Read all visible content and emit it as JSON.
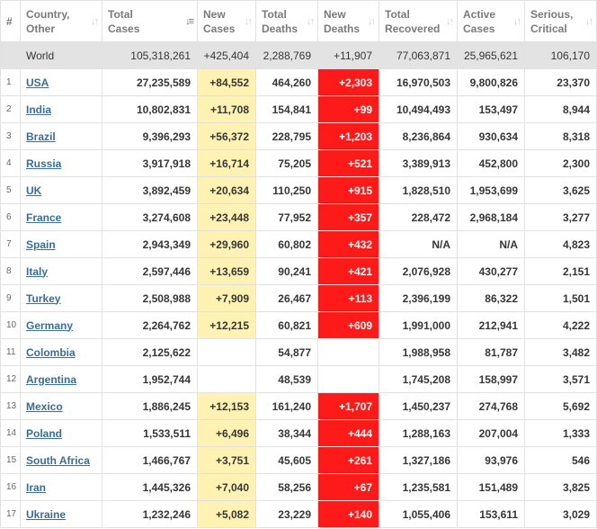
{
  "headers": [
    {
      "id": "rank",
      "lines": [
        "#"
      ]
    },
    {
      "id": "country",
      "lines": [
        "Country,",
        "Other"
      ]
    },
    {
      "id": "total_cases",
      "lines": [
        "Total",
        "Cases"
      ],
      "sorted": true
    },
    {
      "id": "new_cases",
      "lines": [
        "New",
        "Cases"
      ]
    },
    {
      "id": "total_deaths",
      "lines": [
        "Total",
        "Deaths"
      ]
    },
    {
      "id": "new_deaths",
      "lines": [
        "New",
        "Deaths"
      ]
    },
    {
      "id": "total_recovered",
      "lines": [
        "Total",
        "Recovered"
      ]
    },
    {
      "id": "active_cases",
      "lines": [
        "Active",
        "Cases"
      ]
    },
    {
      "id": "serious_critical",
      "lines": [
        "Serious,",
        "Critical"
      ]
    }
  ],
  "world": {
    "country": "World",
    "total_cases": "105,318,261",
    "new_cases": "+425,404",
    "total_deaths": "2,288,769",
    "new_deaths": "+11,907",
    "total_recovered": "77,063,871",
    "active_cases": "25,965,621",
    "serious_critical": "106,170"
  },
  "rows": [
    {
      "rank": "1",
      "country": "USA",
      "total_cases": "27,235,589",
      "new_cases": "+84,552",
      "total_deaths": "464,260",
      "new_deaths": "+2,303",
      "total_recovered": "16,970,503",
      "active_cases": "9,800,826",
      "serious_critical": "23,370"
    },
    {
      "rank": "2",
      "country": "India",
      "total_cases": "10,802,831",
      "new_cases": "+11,708",
      "total_deaths": "154,841",
      "new_deaths": "+99",
      "total_recovered": "10,494,493",
      "active_cases": "153,497",
      "serious_critical": "8,944"
    },
    {
      "rank": "3",
      "country": "Brazil",
      "total_cases": "9,396,293",
      "new_cases": "+56,372",
      "total_deaths": "228,795",
      "new_deaths": "+1,203",
      "total_recovered": "8,236,864",
      "active_cases": "930,634",
      "serious_critical": "8,318"
    },
    {
      "rank": "4",
      "country": "Russia",
      "total_cases": "3,917,918",
      "new_cases": "+16,714",
      "total_deaths": "75,205",
      "new_deaths": "+521",
      "total_recovered": "3,389,913",
      "active_cases": "452,800",
      "serious_critical": "2,300"
    },
    {
      "rank": "5",
      "country": "UK",
      "total_cases": "3,892,459",
      "new_cases": "+20,634",
      "total_deaths": "110,250",
      "new_deaths": "+915",
      "total_recovered": "1,828,510",
      "active_cases": "1,953,699",
      "serious_critical": "3,625"
    },
    {
      "rank": "6",
      "country": "France",
      "total_cases": "3,274,608",
      "new_cases": "+23,448",
      "total_deaths": "77,952",
      "new_deaths": "+357",
      "total_recovered": "228,472",
      "active_cases": "2,968,184",
      "serious_critical": "3,277"
    },
    {
      "rank": "7",
      "country": "Spain",
      "total_cases": "2,943,349",
      "new_cases": "+29,960",
      "total_deaths": "60,802",
      "new_deaths": "+432",
      "total_recovered": "N/A",
      "active_cases": "N/A",
      "serious_critical": "4,823"
    },
    {
      "rank": "8",
      "country": "Italy",
      "total_cases": "2,597,446",
      "new_cases": "+13,659",
      "total_deaths": "90,241",
      "new_deaths": "+421",
      "total_recovered": "2,076,928",
      "active_cases": "430,277",
      "serious_critical": "2,151"
    },
    {
      "rank": "9",
      "country": "Turkey",
      "total_cases": "2,508,988",
      "new_cases": "+7,909",
      "total_deaths": "26,467",
      "new_deaths": "+113",
      "total_recovered": "2,396,199",
      "active_cases": "86,322",
      "serious_critical": "1,501"
    },
    {
      "rank": "10",
      "country": "Germany",
      "total_cases": "2,264,762",
      "new_cases": "+12,215",
      "total_deaths": "60,821",
      "new_deaths": "+609",
      "total_recovered": "1,991,000",
      "active_cases": "212,941",
      "serious_critical": "4,222"
    },
    {
      "rank": "11",
      "country": "Colombia",
      "total_cases": "2,125,622",
      "new_cases": "",
      "total_deaths": "54,877",
      "new_deaths": "",
      "total_recovered": "1,988,958",
      "active_cases": "81,787",
      "serious_critical": "3,482"
    },
    {
      "rank": "12",
      "country": "Argentina",
      "total_cases": "1,952,744",
      "new_cases": "",
      "total_deaths": "48,539",
      "new_deaths": "",
      "total_recovered": "1,745,208",
      "active_cases": "158,997",
      "serious_critical": "3,571"
    },
    {
      "rank": "13",
      "country": "Mexico",
      "total_cases": "1,886,245",
      "new_cases": "+12,153",
      "total_deaths": "161,240",
      "new_deaths": "+1,707",
      "total_recovered": "1,450,237",
      "active_cases": "274,768",
      "serious_critical": "5,692"
    },
    {
      "rank": "14",
      "country": "Poland",
      "total_cases": "1,533,511",
      "new_cases": "+6,496",
      "total_deaths": "38,344",
      "new_deaths": "+444",
      "total_recovered": "1,288,163",
      "active_cases": "207,004",
      "serious_critical": "1,333"
    },
    {
      "rank": "15",
      "country": "South Africa",
      "total_cases": "1,466,767",
      "new_cases": "+3,751",
      "total_deaths": "45,605",
      "new_deaths": "+261",
      "total_recovered": "1,327,186",
      "active_cases": "93,976",
      "serious_critical": "546"
    },
    {
      "rank": "16",
      "country": "Iran",
      "total_cases": "1,445,326",
      "new_cases": "+7,040",
      "total_deaths": "58,256",
      "new_deaths": "+67",
      "total_recovered": "1,235,581",
      "active_cases": "151,489",
      "serious_critical": "3,825"
    },
    {
      "rank": "17",
      "country": "Ukraine",
      "total_cases": "1,232,246",
      "new_cases": "+5,082",
      "total_deaths": "23,229",
      "new_deaths": "+140",
      "total_recovered": "1,055,406",
      "active_cases": "153,611",
      "serious_critical": "3,029"
    }
  ],
  "colors": {
    "new_cases_highlight": "#fff2b2",
    "new_deaths_highlight": "#ff1a1a",
    "world_row": "#e3e3e3",
    "link": "#3b6e8e"
  },
  "icons": {
    "sort_inactive": "sort-arrows-icon",
    "sort_active": "sort-descending-icon"
  }
}
